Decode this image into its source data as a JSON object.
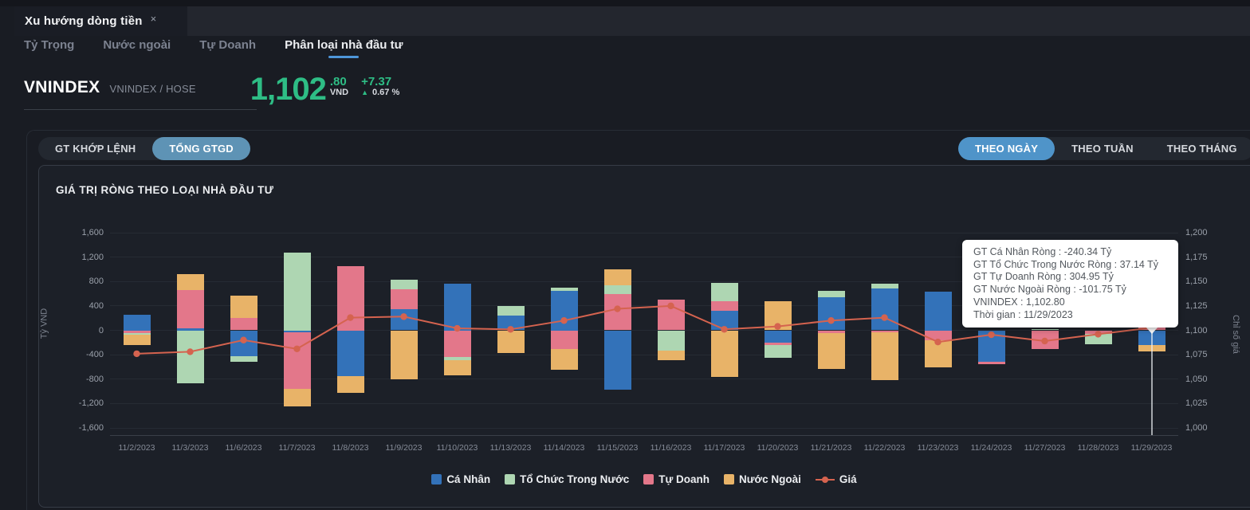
{
  "window": {
    "tab_title": "Xu hướng dòng tiền",
    "close_label": "×"
  },
  "nav": {
    "tabs": [
      {
        "label": "Tỷ Trọng",
        "active": false
      },
      {
        "label": "Nước ngoài",
        "active": false
      },
      {
        "label": "Tự Doanh",
        "active": false
      },
      {
        "label": "Phân loại nhà đầu tư",
        "active": true
      }
    ]
  },
  "symbol": {
    "name": "VNINDEX",
    "code": "VNINDEX / HOSE",
    "price_int": "1,102",
    "price_dec": ".80",
    "currency": "VND",
    "change": "+7.37",
    "arrow": "▲",
    "change_pct": "0.67 %"
  },
  "controls": {
    "left": [
      {
        "label": "GT KHỚP LỆNH",
        "active": false
      },
      {
        "label": "TỔNG GTGD",
        "active": true
      }
    ],
    "right": [
      {
        "label": "THEO NGÀY",
        "active": true
      },
      {
        "label": "THEO TUẦN",
        "active": false
      },
      {
        "label": "THEO THÁNG",
        "active": false
      }
    ]
  },
  "tooltip": {
    "lines": [
      "GT Cá Nhân Ròng  : -240.34 Tỷ",
      "GT Tổ Chức Trong Nước Ròng : 37.14 Tỷ",
      "GT Tự Doanh Ròng : 304.95 Tỷ",
      "GT Nước Ngoài Ròng : -101.75 Tỷ",
      "VNINDEX : 1,102.80",
      "Thời gian : 11/29/2023"
    ]
  },
  "chart_data": {
    "type": "bar",
    "subtype": "stacked-bar-with-line",
    "title": "GIÁ TRỊ RÒNG THEO LOẠI NHÀ ĐẦU TƯ",
    "categories": [
      "11/2/2023",
      "11/3/2023",
      "11/6/2023",
      "11/7/2023",
      "11/8/2023",
      "11/9/2023",
      "11/10/2023",
      "11/13/2023",
      "11/14/2023",
      "11/15/2023",
      "11/16/2023",
      "11/17/2023",
      "11/20/2023",
      "11/21/2023",
      "11/22/2023",
      "11/23/2023",
      "11/24/2023",
      "11/27/2023",
      "11/28/2023",
      "11/29/2023"
    ],
    "unit": "Tỷ VND",
    "bar_series": [
      {
        "name": "Cá Nhân",
        "color": "#3372b9",
        "values": [
          250,
          30,
          -425,
          -35,
          -750,
          348,
          760,
          248,
          650,
          -975,
          0,
          326,
          -204,
          543,
          686,
          630,
          -510,
          0,
          0,
          -240.34
        ]
      },
      {
        "name": "Tổ Chức Trong Nước",
        "color": "#aed6b2",
        "values": [
          -25,
          -870,
          -87,
          1270,
          0,
          160,
          -48,
          152,
          43,
          143,
          -334,
          304,
          -217,
          108,
          74,
          0,
          0,
          25,
          -170,
          37.14
        ]
      },
      {
        "name": "Tự Doanh",
        "color": "#e3778a",
        "values": [
          -45,
          630,
          204,
          -925,
          1050,
          326,
          -443,
          0,
          -304,
          595,
          508,
          152,
          -35,
          -43,
          -30,
          -160,
          -45,
          -310,
          -60,
          304.95
        ]
      },
      {
        "name": "Nước Ngoài",
        "color": "#e8b368",
        "values": [
          -170,
          265,
          360,
          -282,
          -273,
          -805,
          -248,
          -370,
          -348,
          260,
          -156,
          -760,
          478,
          -587,
          -780,
          -447,
          0,
          0,
          0,
          -101.75
        ]
      }
    ],
    "stack_order": [
      0,
      2,
      1,
      3
    ],
    "line_series": {
      "name": "Giá",
      "color": "#d5634f",
      "values": [
        1076,
        1078,
        1090,
        1081,
        1113,
        1114,
        1102,
        1101,
        1110,
        1122,
        1125,
        1101,
        1104,
        1110,
        1113,
        1088,
        1095.5,
        1089,
        1096,
        1102.8
      ]
    },
    "y_left": {
      "label": "Tỷ VND",
      "min": -1600,
      "max": 1600,
      "ticks": [
        "1,600",
        "1,200",
        "800",
        "400",
        "0",
        "-400",
        "-800",
        "-1,200",
        "-1,600"
      ]
    },
    "y_right": {
      "label": "Chỉ số giá",
      "min": 1000,
      "max": 1200,
      "ticks": [
        "1,200",
        "1,175",
        "1,150",
        "1,125",
        "1,100",
        "1,075",
        "1,050",
        "1,025",
        "1,000"
      ]
    },
    "legend": [
      "Cá Nhân",
      "Tổ Chức Trong Nước",
      "Tự Doanh",
      "Nước Ngoài",
      "Giá"
    ],
    "legend_position": "bottom",
    "grid": true,
    "hovered_category": "11/29/2023"
  }
}
